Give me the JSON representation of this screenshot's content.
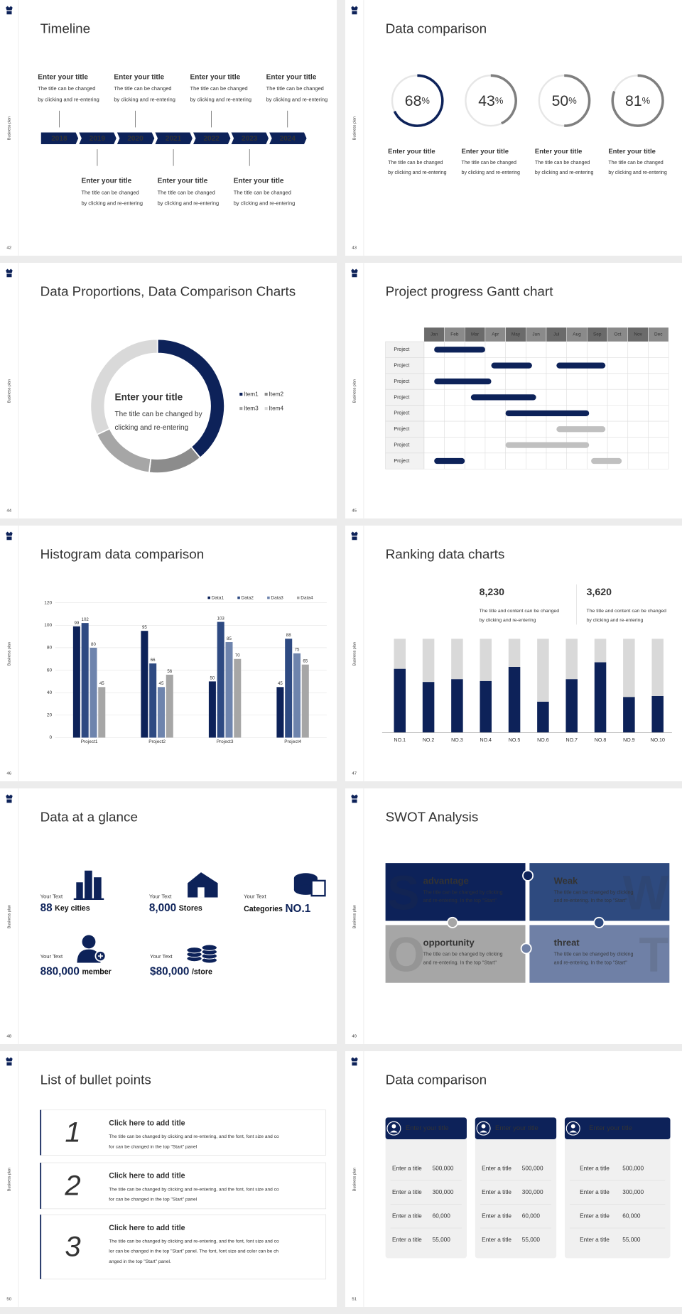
{
  "side_label": "Business plan",
  "slides": [
    {
      "type": "timeline",
      "page": "42",
      "title": "Timeline",
      "years": [
        "2018",
        "2019",
        "2020",
        "2021",
        "2022",
        "2023",
        "2024"
      ],
      "items": [
        {
          "title": "Enter your title",
          "text": [
            "The title can be changed",
            "by clicking and re-entering"
          ]
        },
        {
          "title": "Enter your title",
          "text": [
            "The title can be changed",
            "by clicking and re-entering"
          ]
        },
        {
          "title": "Enter your title",
          "text": [
            "The title can be changed",
            "by clicking and re-entering"
          ]
        },
        {
          "title": "Enter your title",
          "text": [
            "The title can be changed",
            "by clicking and re-entering"
          ]
        },
        {
          "title": "Enter your title",
          "text": [
            "The title can be changed",
            "by clicking and re-entering"
          ]
        },
        {
          "title": "Enter your title",
          "text": [
            "The title can be changed",
            "by clicking and re-entering"
          ]
        },
        {
          "title": "Enter your title",
          "text": [
            "The title can be changed",
            "by clicking and re-entering"
          ]
        }
      ]
    },
    {
      "type": "rings",
      "page": "43",
      "title": "Data comparison",
      "unit": "%",
      "items": [
        {
          "value": 68,
          "color": "#0d2259",
          "title": "Enter your title",
          "text": [
            "The title can be changed",
            "by clicking and re-entering"
          ]
        },
        {
          "value": 43,
          "color": "#7f7f7f",
          "title": "Enter your title",
          "text": [
            "The title can be changed",
            "by clicking and re-entering"
          ]
        },
        {
          "value": 50,
          "color": "#7f7f7f",
          "title": "Enter your title",
          "text": [
            "The title can be changed",
            "by clicking and re-entering"
          ]
        },
        {
          "value": 81,
          "color": "#7f7f7f",
          "title": "Enter your title",
          "text": [
            "The title can be changed",
            "by clicking and re-entering"
          ]
        }
      ]
    },
    {
      "type": "donut",
      "page": "44",
      "title": "Data Proportions, Data Comparison Charts",
      "center_title": "Enter your title",
      "center_text": [
        "The title can be changed by",
        "clicking and re-entering"
      ],
      "chart_data": {
        "type": "pie",
        "categories": [
          "Item1",
          "Item2",
          "Item3",
          "Item4"
        ],
        "values": [
          39,
          13,
          16,
          32
        ],
        "colors": [
          "#0d2259",
          "#8c8c8c",
          "#a6a6a6",
          "#d9d9d9"
        ]
      }
    },
    {
      "type": "gantt",
      "page": "45",
      "title": "Project progress Gantt chart",
      "chart_data": {
        "type": "gantt",
        "categories": [
          "Jan",
          "Feb",
          "Mar",
          "Apr",
          "May",
          "Jun",
          "Jul",
          "Aug",
          "Sep",
          "Oct",
          "Nov",
          "Dec"
        ],
        "xlim": [
          0,
          12
        ],
        "rows": [
          {
            "name": "Project",
            "bars": [
              {
                "start": 0.5,
                "end": 3.0,
                "color": "#0d2259"
              }
            ]
          },
          {
            "name": "Project",
            "bars": [
              {
                "start": 3.3,
                "end": 5.3,
                "color": "#0d2259"
              },
              {
                "start": 6.5,
                "end": 8.9,
                "color": "#0d2259"
              }
            ]
          },
          {
            "name": "Project",
            "bars": [
              {
                "start": 0.5,
                "end": 3.3,
                "color": "#0d2259"
              }
            ]
          },
          {
            "name": "Project",
            "bars": [
              {
                "start": 2.3,
                "end": 5.5,
                "color": "#0d2259"
              }
            ]
          },
          {
            "name": "Project",
            "bars": [
              {
                "start": 4.0,
                "end": 8.1,
                "color": "#0d2259"
              }
            ]
          },
          {
            "name": "Project",
            "bars": [
              {
                "start": 6.5,
                "end": 8.9,
                "color": "#c0c0c0"
              }
            ]
          },
          {
            "name": "Project",
            "bars": [
              {
                "start": 4.0,
                "end": 8.1,
                "color": "#c0c0c0"
              }
            ]
          },
          {
            "name": "Project",
            "bars": [
              {
                "start": 0.5,
                "end": 2.0,
                "color": "#0d2259"
              },
              {
                "start": 8.2,
                "end": 9.7,
                "color": "#c0c0c0"
              }
            ]
          }
        ]
      }
    },
    {
      "type": "histogram",
      "page": "46",
      "title": "Histogram data comparison",
      "chart_data": {
        "type": "bar",
        "categories": [
          "Project1",
          "Project2",
          "Project3",
          "Project4"
        ],
        "series": [
          {
            "name": "Data1",
            "color": "#0d2259",
            "values": [
              99,
              95,
              50,
              45
            ]
          },
          {
            "name": "Data2",
            "color": "#2e4a82",
            "values": [
              102,
              66,
              103,
              88
            ]
          },
          {
            "name": "Data3",
            "color": "#6e84ad",
            "values": [
              80,
              45,
              85,
              75
            ]
          },
          {
            "name": "Data4",
            "color": "#a6a6a6",
            "values": [
              45,
              56,
              70,
              65
            ]
          }
        ],
        "ylim": [
          0,
          120
        ],
        "yticks": [
          0,
          20,
          40,
          60,
          80,
          100,
          120
        ],
        "grid": true,
        "legend": "top-right"
      }
    },
    {
      "type": "ranking",
      "page": "47",
      "title": "Ranking data charts",
      "stats": [
        {
          "value": "8,230",
          "text": [
            "The title and content can be changed",
            "by clicking and re-entering"
          ]
        },
        {
          "value": "3,620",
          "text": [
            "The title and content can be changed",
            "by clicking and re-entering"
          ]
        }
      ],
      "chart_data": {
        "type": "stacked-bar",
        "categories": [
          "NO.1",
          "NO.2",
          "NO.3",
          "NO.4",
          "NO.5",
          "NO.6",
          "NO.7",
          "NO.8",
          "NO.9",
          "NO.10"
        ],
        "series": [
          {
            "color": "#0d2259",
            "values": [
              68,
              54,
              57,
              55,
              70,
              33,
              57,
              75,
              38,
              39
            ]
          },
          {
            "color": "#d9d9d9",
            "values": [
              32,
              46,
              43,
              45,
              30,
              67,
              43,
              25,
              62,
              61
            ]
          }
        ],
        "ylim": [
          0,
          100
        ]
      }
    },
    {
      "type": "glance",
      "page": "48",
      "title": "Data at a glance",
      "items": [
        {
          "label": "Your Text",
          "value": "88",
          "suffix": "Key cities"
        },
        {
          "label": "Your Text",
          "value": "8,000",
          "suffix": "Stores"
        },
        {
          "label": "Your Text",
          "prefix": "Categories",
          "value": "NO.1"
        },
        {
          "label": "Your Text",
          "value": "880,000",
          "suffix": "member"
        },
        {
          "label": "Your Text",
          "value": "$80,000",
          "suffix": "/store"
        }
      ]
    },
    {
      "type": "swot",
      "page": "49",
      "title": "SWOT Analysis",
      "items": [
        {
          "letter": "S",
          "title": "advantage",
          "text": [
            "The title can be changed by clicking",
            "and re-entering. In the top \"Start\""
          ]
        },
        {
          "letter": "W",
          "title": "Weak",
          "text": [
            "The title can be changed by clicking",
            "and re-entering. In the top \"Start\""
          ]
        },
        {
          "letter": "O",
          "title": "opportunity",
          "text": [
            "The title can be changed by clicking",
            "and re-entering. In the top \"Start\""
          ]
        },
        {
          "letter": "T",
          "title": "threat",
          "text": [
            "The title can be changed by clicking",
            "and re-entering. In the top \"Start\""
          ]
        }
      ]
    },
    {
      "type": "bullets",
      "page": "50",
      "title": "List of bullet points",
      "items": [
        {
          "number": "1",
          "title": "Click here to add title",
          "text": [
            "The title can be changed by clicking and re-entering, and the font, font size and co",
            "for can be changed in the top \"Start\" panel"
          ]
        },
        {
          "number": "2",
          "title": "Click here to add title",
          "text": [
            "The title can be changed by clicking and re-entering, and the font, font size and co",
            "for can be changed in the top \"Start\" panel"
          ]
        },
        {
          "number": "3",
          "title": "Click here to add title",
          "text": [
            "The title can be changed by clicking and re-entering, and the font, font size and co",
            "lor can be changed in the top \"Start\" panel. The font, font size and color can be ch",
            "anged in the top \"Start\" panel."
          ]
        }
      ]
    },
    {
      "type": "cards",
      "page": "51",
      "title": "Data comparison",
      "cards": [
        {
          "title": "Enter your title",
          "rows": [
            {
              "label": "Enter a title",
              "value": "500,000"
            },
            {
              "label": "Enter a title",
              "value": "300,000"
            },
            {
              "label": "Enter a title",
              "value": "60,000"
            },
            {
              "label": "Enter a title",
              "value": "55,000"
            }
          ]
        },
        {
          "title": "Enter your title",
          "rows": [
            {
              "label": "Enter a title",
              "value": "500,000"
            },
            {
              "label": "Enter a title",
              "value": "300,000"
            },
            {
              "label": "Enter a title",
              "value": "60,000"
            },
            {
              "label": "Enter a title",
              "value": "55,000"
            }
          ]
        },
        {
          "title": "Enter your title",
          "rows": [
            {
              "label": "Enter a title",
              "value": "500,000"
            },
            {
              "label": "Enter a title",
              "value": "300,000"
            },
            {
              "label": "Enter a title",
              "value": "60,000"
            },
            {
              "label": "Enter a title",
              "value": "55,000"
            }
          ]
        }
      ]
    }
  ]
}
